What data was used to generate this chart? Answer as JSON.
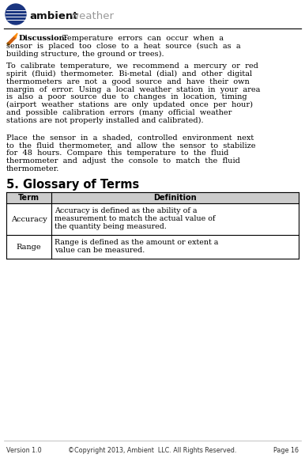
{
  "bg_color": "#ffffff",
  "text_color": "#000000",
  "header_bold": "ambient",
  "header_normal": " weather",
  "header_line_color": "#111111",
  "discussion_bold": "Discussion",
  "disc_line1a": "Temperature  errors  can  occur  when  a",
  "disc_line2": "sensor  is  placed  too  close  to  a  heat  source  (such  as  a",
  "disc_line3": "building structure, the ground or trees).",
  "para2_lines": [
    "To  calibrate  temperature,  we  recommend  a  mercury  or  red",
    "spirit  (fluid)  thermometer.  Bi-metal  (dial)  and  other  digital",
    "thermometers  are  not  a  good  source  and  have  their  own",
    "margin  of  error.  Using  a  local  weather  station  in  your  area",
    "is  also  a  poor  source  due  to  changes  in  location,  timing",
    "(airport  weather  stations  are  only  updated  once  per  hour)",
    "and  possible  calibration  errors  (many  official  weather",
    "stations are not properly installed and calibrated)."
  ],
  "para3_lines": [
    "Place  the  sensor  in  a  shaded,  controlled  environment  next",
    "to  the  fluid  thermometer,  and  allow  the  sensor  to  stabilize",
    "for  48  hours.  Compare  this  temperature  to  the  fluid",
    "thermometer  and  adjust  the  console  to  match  the  fluid",
    "thermometer."
  ],
  "section_title": "5. Glossary of Terms",
  "table_header": [
    "Term",
    "Definition"
  ],
  "table_rows": [
    [
      "Accuracy",
      "Accuracy is defined as the ability of a\nmeasurement to match the actual value of\nthe quantity being measured."
    ],
    [
      "Range",
      "Range is defined as the amount or extent a\nvalue can be measured."
    ]
  ],
  "footer_left": "Version 1.0",
  "footer_center": "©Copyright 2013, Ambient  LLC. All Rights Reserved.",
  "footer_right": "Page 16",
  "globe_color": "#1a3580",
  "globe_line_color": "#ffffff",
  "header_text_color": "#111111",
  "header_weather_color": "#999999",
  "icon_color": "#cc5500",
  "table_header_bg": "#cccccc",
  "table_border_color": "#000000",
  "section_bold_color": "#000000",
  "footer_color": "#333333",
  "footer_line_color": "#aaaaaa"
}
